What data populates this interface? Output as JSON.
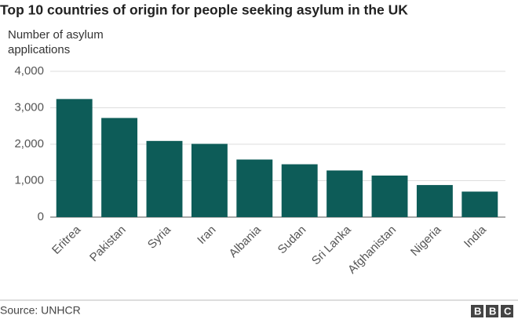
{
  "chart_data": {
    "type": "bar",
    "title": "Top 10 countries of origin for people seeking asylum in the UK",
    "ylabel": "Number of asylum applications",
    "categories": [
      "Eritrea",
      "Pakistan",
      "Syria",
      "Iran",
      "Albania",
      "Sudan",
      "Sri Lanka",
      "Afghanistan",
      "Nigeria",
      "India"
    ],
    "values": [
      3240,
      2720,
      2090,
      2010,
      1580,
      1450,
      1280,
      1140,
      880,
      700
    ],
    "color": "#0d5c58",
    "ylim": [
      0,
      4000
    ],
    "yticks": [
      0,
      {
        "value": 1000,
        "label": "1,000"
      },
      {
        "value": 2000,
        "label": "2,000"
      },
      {
        "value": 3000,
        "label": "3,000"
      },
      {
        "value": 4000,
        "label": "4,000"
      }
    ],
    "grid": true,
    "source": "Source: UNHCR",
    "logo": "BBC"
  }
}
